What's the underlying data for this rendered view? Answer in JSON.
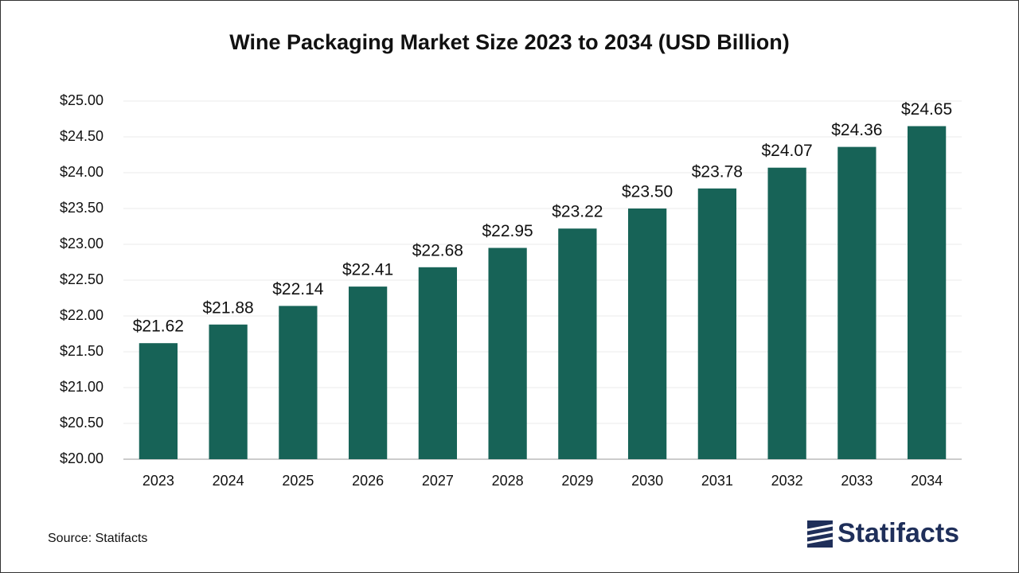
{
  "chart_data": {
    "type": "bar",
    "title": "Wine Packaging Market Size 2023 to 2034 (USD Billion)",
    "categories": [
      "2023",
      "2024",
      "2025",
      "2026",
      "2027",
      "2028",
      "2029",
      "2030",
      "2031",
      "2032",
      "2033",
      "2034"
    ],
    "values": [
      21.62,
      21.88,
      22.14,
      22.41,
      22.68,
      22.95,
      23.22,
      23.5,
      23.78,
      24.07,
      24.36,
      24.65
    ],
    "value_labels": [
      "$21.62",
      "$21.88",
      "$22.14",
      "$22.41",
      "$22.68",
      "$22.95",
      "$23.22",
      "$23.50",
      "$23.78",
      "$24.07",
      "$24.36",
      "$24.65"
    ],
    "color": "#176357",
    "ylim": [
      20,
      25
    ],
    "yticks": [
      {
        "value": 20,
        "label": "$20.00"
      },
      {
        "value": 20.5,
        "label": "$20.50"
      },
      {
        "value": 21,
        "label": "$21.00"
      },
      {
        "value": 21.5,
        "label": "$21.50"
      },
      {
        "value": 22,
        "label": "$22.00"
      },
      {
        "value": 22.5,
        "label": "$22.50"
      },
      {
        "value": 23,
        "label": "$23.00"
      },
      {
        "value": 23.5,
        "label": "$23.50"
      },
      {
        "value": 24,
        "label": "$24.00"
      },
      {
        "value": 24.5,
        "label": "$24.50"
      },
      {
        "value": 25,
        "label": "$25.00"
      }
    ],
    "grid": true,
    "source": "Source: Statifacts",
    "logo": "Statifacts"
  }
}
